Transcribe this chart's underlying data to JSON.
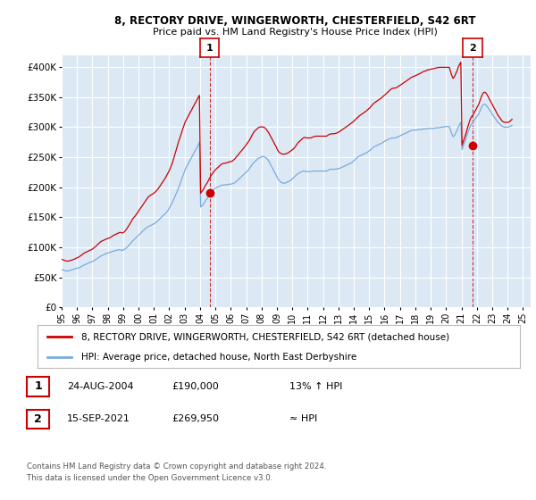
{
  "title": "8, RECTORY DRIVE, WINGERWORTH, CHESTERFIELD, S42 6RT",
  "subtitle": "Price paid vs. HM Land Registry's House Price Index (HPI)",
  "ylim": [
    0,
    420000
  ],
  "yticks": [
    0,
    50000,
    100000,
    150000,
    200000,
    250000,
    300000,
    350000,
    400000
  ],
  "ytick_labels": [
    "£0",
    "£50K",
    "£100K",
    "£150K",
    "£200K",
    "£250K",
    "£300K",
    "£350K",
    "£400K"
  ],
  "background_color": "#ffffff",
  "plot_bg_color": "#dce9f5",
  "grid_color": "#ffffff",
  "line1_color": "#cc0000",
  "line2_color": "#7aaadd",
  "annotation_color": "#cc0000",
  "sale1_x": 2004.62,
  "sale1_y": 190000,
  "sale2_x": 2021.71,
  "sale2_y": 269950,
  "sale1_label": "1",
  "sale2_label": "2",
  "legend_line1": "8, RECTORY DRIVE, WINGERWORTH, CHESTERFIELD, S42 6RT (detached house)",
  "legend_line2": "HPI: Average price, detached house, North East Derbyshire",
  "table_row1": [
    "1",
    "24-AUG-2004",
    "£190,000",
    "13% ↑ HPI"
  ],
  "table_row2": [
    "2",
    "15-SEP-2021",
    "£269,950",
    "≈ HPI"
  ],
  "footer": "Contains HM Land Registry data © Crown copyright and database right 2024.\nThis data is licensed under the Open Government Licence v3.0.",
  "xlim_start": 1995.0,
  "xlim_end": 2025.5,
  "xtick_years": [
    1995,
    1996,
    1997,
    1998,
    1999,
    2000,
    2001,
    2002,
    2003,
    2004,
    2005,
    2006,
    2007,
    2008,
    2009,
    2010,
    2011,
    2012,
    2013,
    2014,
    2015,
    2016,
    2017,
    2018,
    2019,
    2020,
    2021,
    2022,
    2023,
    2024,
    2025
  ],
  "hpi_years": [
    1995.04,
    1995.12,
    1995.21,
    1995.29,
    1995.37,
    1995.46,
    1995.54,
    1995.62,
    1995.71,
    1995.79,
    1995.87,
    1995.96,
    1996.04,
    1996.12,
    1996.21,
    1996.29,
    1996.37,
    1996.46,
    1996.54,
    1996.62,
    1996.71,
    1996.79,
    1996.87,
    1996.96,
    1997.04,
    1997.12,
    1997.21,
    1997.29,
    1997.37,
    1997.46,
    1997.54,
    1997.62,
    1997.71,
    1997.79,
    1997.87,
    1997.96,
    1998.04,
    1998.12,
    1998.21,
    1998.29,
    1998.37,
    1998.46,
    1998.54,
    1998.62,
    1998.71,
    1998.79,
    1998.87,
    1998.96,
    1999.04,
    1999.12,
    1999.21,
    1999.29,
    1999.37,
    1999.46,
    1999.54,
    1999.62,
    1999.71,
    1999.79,
    1999.87,
    1999.96,
    2000.04,
    2000.12,
    2000.21,
    2000.29,
    2000.37,
    2000.46,
    2000.54,
    2000.62,
    2000.71,
    2000.79,
    2000.87,
    2000.96,
    2001.04,
    2001.12,
    2001.21,
    2001.29,
    2001.37,
    2001.46,
    2001.54,
    2001.62,
    2001.71,
    2001.79,
    2001.87,
    2001.96,
    2002.04,
    2002.12,
    2002.21,
    2002.29,
    2002.37,
    2002.46,
    2002.54,
    2002.62,
    2002.71,
    2002.79,
    2002.87,
    2002.96,
    2003.04,
    2003.12,
    2003.21,
    2003.29,
    2003.37,
    2003.46,
    2003.54,
    2003.62,
    2003.71,
    2003.79,
    2003.87,
    2003.96,
    2004.04,
    2004.12,
    2004.21,
    2004.29,
    2004.37,
    2004.46,
    2004.54,
    2004.62,
    2004.71,
    2004.79,
    2004.87,
    2004.96,
    2005.04,
    2005.12,
    2005.21,
    2005.29,
    2005.37,
    2005.46,
    2005.54,
    2005.62,
    2005.71,
    2005.79,
    2005.87,
    2005.96,
    2006.04,
    2006.12,
    2006.21,
    2006.29,
    2006.37,
    2006.46,
    2006.54,
    2006.62,
    2006.71,
    2006.79,
    2006.87,
    2006.96,
    2007.04,
    2007.12,
    2007.21,
    2007.29,
    2007.37,
    2007.46,
    2007.54,
    2007.62,
    2007.71,
    2007.79,
    2007.87,
    2007.96,
    2008.04,
    2008.12,
    2008.21,
    2008.29,
    2008.37,
    2008.46,
    2008.54,
    2008.62,
    2008.71,
    2008.79,
    2008.87,
    2008.96,
    2009.04,
    2009.12,
    2009.21,
    2009.29,
    2009.37,
    2009.46,
    2009.54,
    2009.62,
    2009.71,
    2009.79,
    2009.87,
    2009.96,
    2010.04,
    2010.12,
    2010.21,
    2010.29,
    2010.37,
    2010.46,
    2010.54,
    2010.62,
    2010.71,
    2010.79,
    2010.87,
    2010.96,
    2011.04,
    2011.12,
    2011.21,
    2011.29,
    2011.37,
    2011.46,
    2011.54,
    2011.62,
    2011.71,
    2011.79,
    2011.87,
    2011.96,
    2012.04,
    2012.12,
    2012.21,
    2012.29,
    2012.37,
    2012.46,
    2012.54,
    2012.62,
    2012.71,
    2012.79,
    2012.87,
    2012.96,
    2013.04,
    2013.12,
    2013.21,
    2013.29,
    2013.37,
    2013.46,
    2013.54,
    2013.62,
    2013.71,
    2013.79,
    2013.87,
    2013.96,
    2014.04,
    2014.12,
    2014.21,
    2014.29,
    2014.37,
    2014.46,
    2014.54,
    2014.62,
    2014.71,
    2014.79,
    2014.87,
    2014.96,
    2015.04,
    2015.12,
    2015.21,
    2015.29,
    2015.37,
    2015.46,
    2015.54,
    2015.62,
    2015.71,
    2015.79,
    2015.87,
    2015.96,
    2016.04,
    2016.12,
    2016.21,
    2016.29,
    2016.37,
    2016.46,
    2016.54,
    2016.62,
    2016.71,
    2016.79,
    2016.87,
    2016.96,
    2017.04,
    2017.12,
    2017.21,
    2017.29,
    2017.37,
    2017.46,
    2017.54,
    2017.62,
    2017.71,
    2017.79,
    2017.87,
    2017.96,
    2018.04,
    2018.12,
    2018.21,
    2018.29,
    2018.37,
    2018.46,
    2018.54,
    2018.62,
    2018.71,
    2018.79,
    2018.87,
    2018.96,
    2019.04,
    2019.12,
    2019.21,
    2019.29,
    2019.37,
    2019.46,
    2019.54,
    2019.62,
    2019.71,
    2019.79,
    2019.87,
    2019.96,
    2020.04,
    2020.12,
    2020.21,
    2020.29,
    2020.37,
    2020.46,
    2020.54,
    2020.62,
    2020.71,
    2020.79,
    2020.87,
    2020.96,
    2021.04,
    2021.12,
    2021.21,
    2021.29,
    2021.37,
    2021.46,
    2021.54,
    2021.62,
    2021.71,
    2021.79,
    2021.87,
    2021.96,
    2022.04,
    2022.12,
    2022.21,
    2022.29,
    2022.37,
    2022.46,
    2022.54,
    2022.62,
    2022.71,
    2022.79,
    2022.87,
    2022.96,
    2023.04,
    2023.12,
    2023.21,
    2023.29,
    2023.37,
    2023.46,
    2023.54,
    2023.62,
    2023.71,
    2023.79,
    2023.87,
    2023.96,
    2024.04,
    2024.12,
    2024.21,
    2024.29
  ],
  "hpi_values": [
    63000,
    62000,
    61500,
    61000,
    60800,
    61000,
    61500,
    62500,
    63000,
    63800,
    64500,
    65000,
    65500,
    66000,
    67000,
    68500,
    69500,
    70500,
    71500,
    72500,
    73500,
    74500,
    75500,
    76000,
    77000,
    78000,
    79500,
    81000,
    82500,
    84000,
    85500,
    86500,
    87500,
    88500,
    89500,
    90500,
    91000,
    91500,
    92000,
    93000,
    94000,
    94500,
    95000,
    95500,
    96000,
    96000,
    95500,
    95000,
    96000,
    97500,
    99000,
    101000,
    103500,
    106000,
    108500,
    111000,
    113000,
    115000,
    117000,
    119500,
    121000,
    123000,
    125500,
    127500,
    129500,
    131500,
    133000,
    134500,
    135500,
    136500,
    137500,
    138500,
    140000,
    141500,
    143000,
    145000,
    147000,
    149500,
    151500,
    153500,
    155500,
    157500,
    160000,
    163000,
    167000,
    171000,
    175500,
    180000,
    185000,
    190000,
    195000,
    200000,
    206000,
    212000,
    218000,
    224000,
    230000,
    234000,
    238000,
    242000,
    246000,
    250000,
    254000,
    258000,
    262000,
    266000,
    270000,
    275000,
    167000,
    169000,
    172000,
    175000,
    178000,
    181000,
    184000,
    187000,
    190000,
    193000,
    196000,
    198000,
    199000,
    200000,
    201000,
    202000,
    203000,
    203500,
    204000,
    204000,
    204000,
    204500,
    205000,
    205000,
    205500,
    206000,
    207000,
    208000,
    210000,
    212000,
    214000,
    216000,
    218000,
    220000,
    222000,
    224000,
    226000,
    228000,
    231000,
    234000,
    237000,
    240000,
    242000,
    244000,
    246000,
    248000,
    249000,
    250000,
    251000,
    251000,
    250000,
    249000,
    247000,
    244000,
    240000,
    236000,
    232000,
    228000,
    224000,
    220000,
    215000,
    212000,
    210000,
    208000,
    207000,
    207000,
    207000,
    208000,
    209000,
    210000,
    211000,
    213000,
    215000,
    217000,
    219000,
    221000,
    223000,
    224000,
    225000,
    226000,
    227000,
    227000,
    226000,
    226000,
    226000,
    226000,
    226000,
    226500,
    227000,
    227000,
    227000,
    227000,
    227000,
    227000,
    227000,
    227000,
    227000,
    227000,
    227000,
    228000,
    229000,
    230000,
    230000,
    230000,
    230000,
    230000,
    230000,
    231000,
    231000,
    232000,
    233000,
    234000,
    235000,
    236000,
    237000,
    238000,
    239000,
    240000,
    241000,
    243000,
    245000,
    247000,
    249000,
    251000,
    252000,
    253000,
    254000,
    255000,
    256000,
    257000,
    258000,
    260000,
    261000,
    263000,
    265000,
    267000,
    268000,
    269000,
    270000,
    271000,
    272000,
    273000,
    274000,
    276000,
    277000,
    278000,
    279000,
    280000,
    281000,
    282000,
    282000,
    282000,
    282000,
    283000,
    284000,
    285000,
    286000,
    287000,
    288000,
    289000,
    290000,
    291000,
    292000,
    293000,
    294000,
    295000,
    295000,
    295000,
    295000,
    295500,
    296000,
    296000,
    296000,
    296500,
    297000,
    297000,
    297000,
    297500,
    298000,
    298000,
    298000,
    298000,
    298000,
    298500,
    299000,
    299000,
    299000,
    299500,
    300000,
    300000,
    300500,
    301000,
    301000,
    301000,
    301000,
    295000,
    289000,
    284000,
    286000,
    290000,
    294000,
    300000,
    304000,
    308000,
    263000,
    269000,
    275000,
    281000,
    288000,
    294000,
    300000,
    304000,
    307000,
    310000,
    313000,
    316000,
    319000,
    322000,
    327000,
    332000,
    336000,
    338000,
    338000,
    336000,
    333000,
    330000,
    327000,
    324000,
    320000,
    317000,
    314000,
    311000,
    308000,
    306000,
    304000,
    302000,
    301000,
    300000,
    300000,
    300000,
    300000,
    301000,
    302000,
    303000
  ],
  "pp_values": [
    80000,
    79000,
    78000,
    77500,
    77000,
    77500,
    78000,
    78500,
    79500,
    80000,
    81000,
    82000,
    83000,
    84000,
    85500,
    87000,
    88500,
    90500,
    91500,
    92500,
    93500,
    94500,
    95500,
    96500,
    98000,
    99500,
    101500,
    103500,
    105500,
    107500,
    109500,
    110500,
    111500,
    112500,
    113500,
    114500,
    115000,
    116000,
    117000,
    118500,
    120000,
    121000,
    122000,
    123000,
    124000,
    125000,
    124500,
    124000,
    125000,
    127000,
    130000,
    133000,
    136500,
    140000,
    143500,
    147500,
    150000,
    152500,
    155500,
    158500,
    162000,
    165000,
    168000,
    171000,
    174000,
    177500,
    180500,
    183500,
    185500,
    187000,
    188000,
    189500,
    191000,
    193000,
    195500,
    198000,
    201000,
    204500,
    207500,
    210500,
    214000,
    217500,
    221500,
    225500,
    230000,
    235000,
    241000,
    248000,
    255000,
    262500,
    270000,
    277000,
    283500,
    290000,
    296500,
    303000,
    309000,
    313000,
    317000,
    321000,
    325000,
    329000,
    333000,
    337000,
    341000,
    345000,
    349000,
    353000,
    190000,
    193000,
    196000,
    200000,
    204000,
    207000,
    211000,
    215000,
    219000,
    222000,
    225000,
    228000,
    230000,
    232000,
    234000,
    236000,
    238000,
    239000,
    240000,
    240000,
    240500,
    241000,
    242000,
    242500,
    243000,
    244000,
    246000,
    248000,
    251000,
    253000,
    256000,
    258500,
    261000,
    263500,
    266000,
    269000,
    272000,
    275000,
    278000,
    282000,
    286000,
    290000,
    293000,
    295000,
    297000,
    299000,
    300000,
    300500,
    300500,
    300000,
    299000,
    297000,
    294000,
    291000,
    287000,
    283000,
    279000,
    275000,
    271000,
    267000,
    262000,
    259000,
    257000,
    256000,
    255000,
    255000,
    255500,
    256000,
    257000,
    258500,
    260000,
    261500,
    263000,
    265000,
    268000,
    271000,
    274000,
    276000,
    278000,
    280000,
    282000,
    283000,
    282500,
    282000,
    282000,
    282000,
    282000,
    283000,
    284000,
    284500,
    285000,
    285000,
    285000,
    285000,
    285000,
    285000,
    285000,
    285000,
    285000,
    286000,
    287500,
    288500,
    289000,
    289000,
    289000,
    289500,
    290000,
    291000,
    292000,
    293500,
    295000,
    296500,
    298000,
    299500,
    301000,
    302500,
    304000,
    305500,
    307000,
    309000,
    311000,
    313000,
    315000,
    317000,
    319000,
    320500,
    322000,
    323500,
    325000,
    326500,
    328000,
    330500,
    332000,
    334500,
    337000,
    339500,
    341000,
    342500,
    344000,
    345500,
    347000,
    348500,
    350000,
    352500,
    354000,
    356000,
    358000,
    360000,
    362000,
    364000,
    364500,
    365000,
    365000,
    366000,
    367500,
    369000,
    370000,
    371500,
    373000,
    374500,
    376000,
    377500,
    379000,
    380500,
    382000,
    383500,
    384000,
    385000,
    386000,
    387000,
    388000,
    389000,
    390000,
    391500,
    392500,
    393000,
    394000,
    395000,
    395500,
    396000,
    396500,
    397000,
    397500,
    398000,
    398500,
    399000,
    399500,
    399500,
    399500,
    399500,
    399500,
    399500,
    399500,
    399500,
    399500,
    393000,
    386000,
    381000,
    384000,
    388500,
    393000,
    400000,
    404000,
    408000,
    269950,
    276000,
    283000,
    289000,
    297000,
    304000,
    311000,
    316000,
    319000,
    322000,
    326000,
    330000,
    334000,
    338000,
    344000,
    350000,
    355000,
    358000,
    358000,
    356000,
    352000,
    348000,
    344000,
    340000,
    336000,
    332000,
    328000,
    324000,
    320000,
    317000,
    314000,
    311000,
    309000,
    308000,
    308000,
    308000,
    308000,
    309000,
    311000,
    313000
  ]
}
